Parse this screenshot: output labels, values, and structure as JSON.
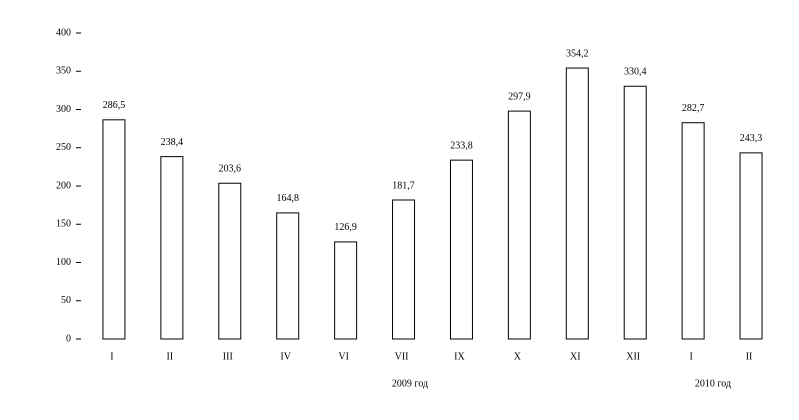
{
  "chart_data": {
    "type": "bar",
    "categories": [
      "I",
      "II",
      "III",
      "IV",
      "VI",
      "VII",
      "IX",
      "X",
      "XI",
      "XII",
      "I",
      "II"
    ],
    "values": [
      286.5,
      238.4,
      203.6,
      164.8,
      126.9,
      181.7,
      233.8,
      297.9,
      354.2,
      330.4,
      282.7,
      243.3
    ],
    "value_labels": [
      "286,5",
      "238,4",
      "203,6",
      "164,8",
      "126,9",
      "181,7",
      "233,8",
      "297,9",
      "354,2",
      "330,4",
      "282,7",
      "243,3"
    ],
    "color": "#000000",
    "ylim": [
      0,
      400
    ],
    "yticks": [
      0,
      50,
      100,
      150,
      200,
      250,
      300,
      350,
      400
    ],
    "annotations": [
      "2009 год",
      "2010 год"
    ]
  }
}
